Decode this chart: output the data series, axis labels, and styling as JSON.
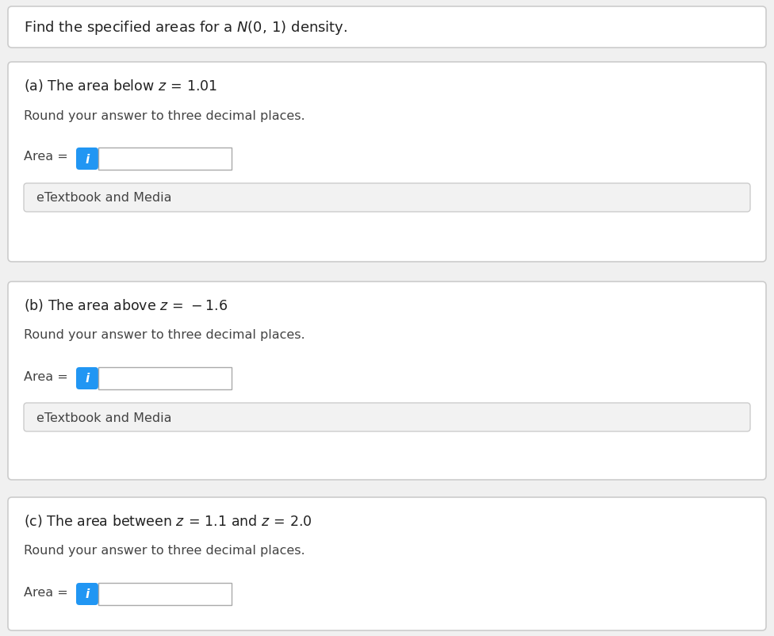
{
  "bg_color": "#f0f0f0",
  "panel_bg": "#ffffff",
  "panel_border": "#cccccc",
  "header_bg": "#ffffff",
  "header_border": "#cccccc",
  "etextbook_bg": "#f2f2f2",
  "etextbook_border": "#cccccc",
  "input_border": "#aaaaaa",
  "input_bg": "#ffffff",
  "btn_color": "#2196F3",
  "btn_text": "i",
  "text_color": "#222222",
  "label_color": "#444444",
  "title_text": "Find the specified areas for a $N(0,\\,1)$ density.",
  "parts": [
    {
      "label": "(a) The area below $z\\, =\\, 1.01$",
      "round_text": "Round your answer to three decimal places.",
      "area_label": "Area ="
    },
    {
      "label": "(b) The area above $z\\, =\\, -1.6$",
      "round_text": "Round your answer to three decimal places.",
      "area_label": "Area ="
    },
    {
      "label": "(c) The area between $z\\, =\\, 1.1$ and $z\\, =\\, 2.0$",
      "round_text": "Round your answer to three decimal places.",
      "area_label": "Area ="
    }
  ],
  "etextbook_text": "eTextbook and Media"
}
